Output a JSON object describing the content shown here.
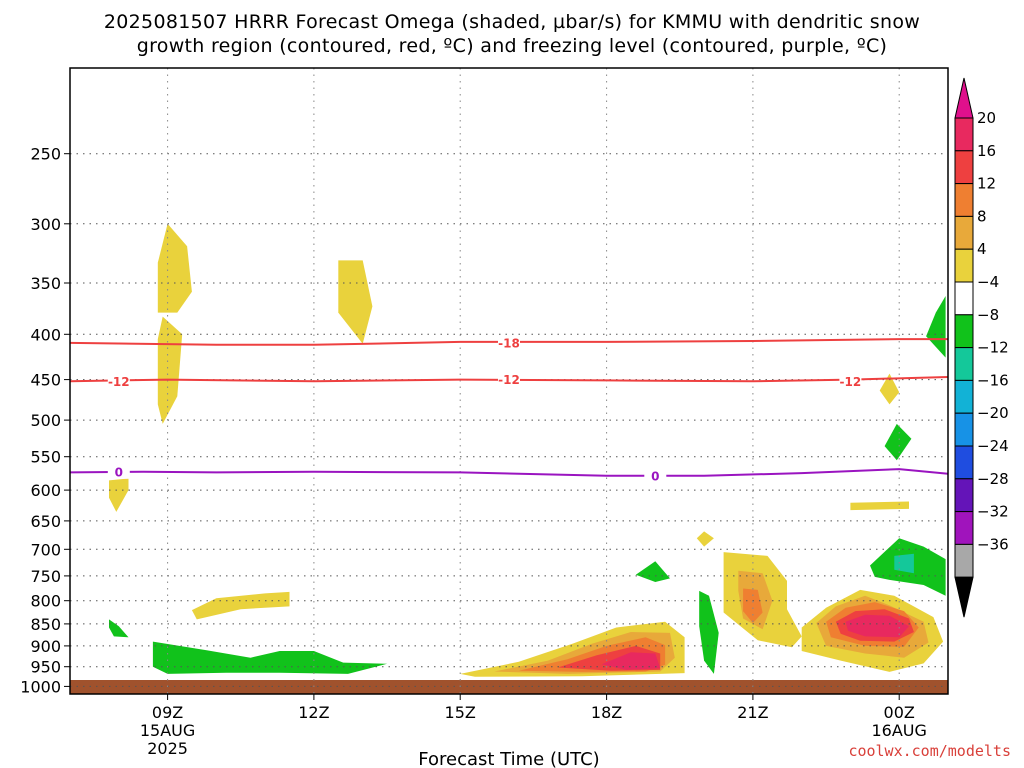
{
  "title_line1": "2025081507 HRRR Forecast Omega (shaded, µbar/s) for KMMU with dendritic snow",
  "title_line2": "growth region (contoured, red, ºC) and freezing level (contoured, purple, ºC)",
  "credit": "coolwx.com/modelts",
  "colorbar": {
    "labels": [
      "20",
      "16",
      "12",
      "8",
      "4",
      "−4",
      "−8",
      "−12",
      "−16",
      "−20",
      "−24",
      "−28",
      "−32",
      "−36"
    ],
    "colors": [
      "#e8295f",
      "#ee4040",
      "#ef7f31",
      "#e8a93a",
      "#e9d23c",
      "#ffffff",
      "#11c21b",
      "#14c89a",
      "#12b2d6",
      "#1792e6",
      "#1f4de0",
      "#6414b8",
      "#a014bc",
      "#a8a8a8"
    ],
    "top_arrow_color": "#e0108c",
    "bottom_arrow_color": "#000000"
  },
  "chart_data": {
    "type": "heatmap",
    "title": "2025081507 HRRR Forecast Omega (shaded, µbar/s) for KMMU with dendritic snow growth region (contoured, red, ºC) and freezing level (contoured, purple, ºC)",
    "xlabel": "Forecast Time (UTC)",
    "ylabel": "",
    "x_ticks": [
      {
        "hour": 9,
        "label": "09Z",
        "sub1": "15AUG",
        "sub2": "2025"
      },
      {
        "hour": 12,
        "label": "12Z",
        "sub1": "",
        "sub2": ""
      },
      {
        "hour": 15,
        "label": "15Z",
        "sub1": "",
        "sub2": ""
      },
      {
        "hour": 18,
        "label": "18Z",
        "sub1": "",
        "sub2": ""
      },
      {
        "hour": 21,
        "label": "21Z",
        "sub1": "",
        "sub2": ""
      },
      {
        "hour": 24,
        "label": "00Z",
        "sub1": "16AUG",
        "sub2": ""
      }
    ],
    "x_range_hours": [
      7,
      25
    ],
    "y_ticks": [
      250,
      300,
      350,
      400,
      450,
      500,
      550,
      600,
      650,
      700,
      750,
      800,
      850,
      900,
      950,
      1000
    ],
    "y_range_hPa": [
      200,
      1020
    ],
    "surface_hPa": 1005,
    "grid": true,
    "contours": [
      {
        "name": "-18",
        "color": "#ee4040",
        "label_positions": [
          [
            16.0,
            409
          ]
        ],
        "points": [
          [
            7,
            409
          ],
          [
            10,
            411
          ],
          [
            12,
            411
          ],
          [
            15,
            408
          ],
          [
            18,
            408
          ],
          [
            21,
            407
          ],
          [
            24,
            405
          ],
          [
            25,
            405
          ]
        ]
      },
      {
        "name": "-12",
        "color": "#ee4040",
        "label_positions": [
          [
            8.0,
            452
          ],
          [
            16.0,
            450
          ],
          [
            23.0,
            452
          ]
        ],
        "points": [
          [
            7,
            452
          ],
          [
            9,
            450
          ],
          [
            12,
            452
          ],
          [
            15,
            450
          ],
          [
            18,
            451
          ],
          [
            21,
            452
          ],
          [
            23,
            450
          ],
          [
            25,
            447
          ]
        ]
      },
      {
        "name": "0",
        "color": "#9a14c0",
        "label_positions": [
          [
            8.0,
            572
          ],
          [
            19.0,
            578
          ]
        ],
        "points": [
          [
            7,
            573
          ],
          [
            8.5,
            572
          ],
          [
            10,
            573
          ],
          [
            12,
            572
          ],
          [
            15,
            573
          ],
          [
            18,
            578
          ],
          [
            20,
            578
          ],
          [
            22,
            574
          ],
          [
            24,
            568
          ],
          [
            25,
            575
          ]
        ]
      }
    ],
    "omega_regions": [
      {
        "class": "4 to 8",
        "color": "#e9d23c",
        "polygon": [
          [
            9.0,
            300
          ],
          [
            9.4,
            318
          ],
          [
            9.5,
            358
          ],
          [
            9.2,
            378
          ],
          [
            8.8,
            378
          ],
          [
            8.8,
            332
          ]
        ]
      },
      {
        "class": "4 to 8",
        "color": "#e9d23c",
        "polygon": [
          [
            8.9,
            382
          ],
          [
            9.3,
            400
          ],
          [
            9.2,
            470
          ],
          [
            8.9,
            505
          ],
          [
            8.8,
            480
          ],
          [
            8.8,
            405
          ]
        ]
      },
      {
        "class": "4 to 8",
        "color": "#e9d23c",
        "polygon": [
          [
            12.5,
            330
          ],
          [
            13.0,
            330
          ],
          [
            13.2,
            372
          ],
          [
            13.0,
            410
          ],
          [
            12.5,
            378
          ]
        ]
      },
      {
        "class": "4 to 8",
        "color": "#e9d23c",
        "polygon": [
          [
            7.8,
            585
          ],
          [
            8.2,
            582
          ],
          [
            8.2,
            600
          ],
          [
            7.95,
            635
          ],
          [
            7.8,
            612
          ]
        ]
      },
      {
        "class": "4 to 8",
        "color": "#e9d23c",
        "polygon": [
          [
            9.5,
            820
          ],
          [
            10.0,
            795
          ],
          [
            11.0,
            785
          ],
          [
            11.5,
            782
          ],
          [
            11.5,
            812
          ],
          [
            10.5,
            818
          ],
          [
            9.6,
            840
          ]
        ]
      },
      {
        "class": "4 to 8",
        "color": "#e9d23c",
        "polygon": [
          [
            15.0,
            968
          ],
          [
            16.2,
            938
          ],
          [
            17.3,
            895
          ],
          [
            18.2,
            858
          ],
          [
            19.2,
            845
          ],
          [
            19.6,
            880
          ],
          [
            19.6,
            966
          ],
          [
            17.5,
            974
          ],
          [
            15.3,
            975
          ]
        ]
      },
      {
        "class": "4 to 8",
        "color": "#e9d23c",
        "polygon": [
          [
            20.4,
            705
          ],
          [
            21.3,
            712
          ],
          [
            21.7,
            760
          ],
          [
            21.7,
            818
          ],
          [
            22.0,
            878
          ],
          [
            21.8,
            903
          ],
          [
            21.1,
            887
          ],
          [
            20.4,
            825
          ],
          [
            20.4,
            755
          ]
        ]
      },
      {
        "class": "4 to 8",
        "color": "#e9d23c",
        "polygon": [
          [
            22.0,
            858
          ],
          [
            22.5,
            815
          ],
          [
            23.2,
            778
          ],
          [
            23.9,
            790
          ],
          [
            24.7,
            835
          ],
          [
            24.9,
            890
          ],
          [
            24.5,
            942
          ],
          [
            23.8,
            963
          ],
          [
            22.8,
            935
          ],
          [
            22.0,
            912
          ]
        ]
      },
      {
        "class": "4 to 8",
        "color": "#e9d23c",
        "polygon": [
          [
            23.8,
            443
          ],
          [
            24.0,
            465
          ],
          [
            23.8,
            480
          ],
          [
            23.6,
            463
          ]
        ]
      },
      {
        "class": "4 to 8",
        "color": "#e9d23c",
        "polygon": [
          [
            23.0,
            620
          ],
          [
            24.2,
            618
          ],
          [
            24.2,
            630
          ],
          [
            23.0,
            632
          ]
        ]
      },
      {
        "class": "4 to 8",
        "color": "#e9d23c",
        "polygon": [
          [
            20.0,
            668
          ],
          [
            20.2,
            680
          ],
          [
            20.0,
            695
          ],
          [
            19.85,
            680
          ]
        ]
      },
      {
        "class": "8 to 12",
        "color": "#e8a93a",
        "polygon": [
          [
            15.7,
            962
          ],
          [
            16.8,
            935
          ],
          [
            17.7,
            895
          ],
          [
            18.5,
            868
          ],
          [
            19.3,
            870
          ],
          [
            19.4,
            928
          ],
          [
            19.1,
            962
          ],
          [
            17.2,
            968
          ]
        ]
      },
      {
        "class": "8 to 12",
        "color": "#e8a93a",
        "polygon": [
          [
            20.7,
            740
          ],
          [
            21.2,
            745
          ],
          [
            21.4,
            800
          ],
          [
            21.2,
            862
          ],
          [
            20.8,
            838
          ],
          [
            20.7,
            780
          ]
        ]
      },
      {
        "class": "8 to 12",
        "color": "#e8a93a",
        "polygon": [
          [
            22.3,
            848
          ],
          [
            22.7,
            812
          ],
          [
            23.3,
            790
          ],
          [
            23.8,
            810
          ],
          [
            24.5,
            845
          ],
          [
            24.6,
            892
          ],
          [
            24.1,
            928
          ],
          [
            23.3,
            918
          ],
          [
            22.5,
            900
          ]
        ]
      },
      {
        "class": "12 to 16",
        "color": "#ef7f31",
        "polygon": [
          [
            16.2,
            960
          ],
          [
            17.2,
            932
          ],
          [
            18.0,
            900
          ],
          [
            18.8,
            880
          ],
          [
            19.2,
            898
          ],
          [
            19.2,
            945
          ],
          [
            18.8,
            962
          ],
          [
            17.5,
            963
          ]
        ]
      },
      {
        "class": "12 to 16",
        "color": "#ef7f31",
        "polygon": [
          [
            20.8,
            775
          ],
          [
            21.1,
            778
          ],
          [
            21.2,
            825
          ],
          [
            21.0,
            848
          ],
          [
            20.8,
            822
          ]
        ]
      },
      {
        "class": "12 to 16",
        "color": "#ef7f31",
        "polygon": [
          [
            22.5,
            845
          ],
          [
            22.9,
            815
          ],
          [
            23.5,
            803
          ],
          [
            24.1,
            822
          ],
          [
            24.4,
            858
          ],
          [
            24.1,
            902
          ],
          [
            23.3,
            900
          ],
          [
            22.6,
            880
          ]
        ]
      },
      {
        "class": "16 to 20",
        "color": "#ee4040",
        "polygon": [
          [
            17.0,
            952
          ],
          [
            17.8,
            922
          ],
          [
            18.6,
            900
          ],
          [
            19.1,
            918
          ],
          [
            19.1,
            958
          ],
          [
            18.1,
            960
          ]
        ]
      },
      {
        "class": "16 to 20",
        "color": "#ee4040",
        "polygon": [
          [
            22.7,
            845
          ],
          [
            23.1,
            822
          ],
          [
            23.7,
            818
          ],
          [
            24.2,
            838
          ],
          [
            24.3,
            868
          ],
          [
            23.9,
            890
          ],
          [
            23.2,
            888
          ],
          [
            22.8,
            872
          ]
        ]
      },
      {
        "class": "above 20",
        "color": "#e8295f",
        "polygon": [
          [
            17.9,
            944
          ],
          [
            18.5,
            915
          ],
          [
            19.0,
            918
          ],
          [
            19.1,
            954
          ],
          [
            18.4,
            958
          ]
        ]
      },
      {
        "class": "above 20",
        "color": "#e8295f",
        "polygon": [
          [
            22.9,
            845
          ],
          [
            23.3,
            830
          ],
          [
            23.8,
            832
          ],
          [
            24.2,
            855
          ],
          [
            24.0,
            880
          ],
          [
            23.3,
            878
          ],
          [
            22.95,
            865
          ]
        ]
      },
      {
        "class": "-4 to -8",
        "color": "#11c21b",
        "polygon": [
          [
            8.7,
            890
          ],
          [
            9.8,
            910
          ],
          [
            10.7,
            928
          ],
          [
            11.3,
            912
          ],
          [
            12.0,
            912
          ],
          [
            12.6,
            940
          ],
          [
            13.5,
            943
          ],
          [
            12.7,
            968
          ],
          [
            11.3,
            965
          ],
          [
            10.2,
            965
          ],
          [
            9.0,
            968
          ],
          [
            8.7,
            950
          ]
        ]
      },
      {
        "class": "-4 to -8",
        "color": "#11c21b",
        "polygon": [
          [
            7.8,
            840
          ],
          [
            8.0,
            855
          ],
          [
            8.2,
            880
          ],
          [
            7.9,
            878
          ],
          [
            7.8,
            858
          ]
        ]
      },
      {
        "class": "-4 to -8",
        "color": "#11c21b",
        "polygon": [
          [
            19.0,
            722
          ],
          [
            19.3,
            755
          ],
          [
            19.0,
            762
          ],
          [
            18.6,
            748
          ]
        ]
      },
      {
        "class": "-4 to -8",
        "color": "#11c21b",
        "polygon": [
          [
            19.9,
            780
          ],
          [
            20.1,
            790
          ],
          [
            20.3,
            870
          ],
          [
            20.2,
            968
          ],
          [
            20.0,
            935
          ],
          [
            19.9,
            855
          ]
        ]
      },
      {
        "class": "-4 to -8",
        "color": "#11c21b",
        "polygon": [
          [
            24.95,
            362
          ],
          [
            24.95,
            425
          ],
          [
            24.55,
            402
          ],
          [
            24.75,
            378
          ]
        ]
      },
      {
        "class": "-4 to -8",
        "color": "#11c21b",
        "polygon": [
          [
            23.95,
            505
          ],
          [
            24.25,
            525
          ],
          [
            23.95,
            555
          ],
          [
            23.7,
            535
          ]
        ]
      },
      {
        "class": "-4 to -8",
        "color": "#11c21b",
        "polygon": [
          [
            23.4,
            730
          ],
          [
            24.0,
            680
          ],
          [
            24.5,
            695
          ],
          [
            24.95,
            718
          ],
          [
            24.95,
            790
          ],
          [
            24.5,
            768
          ],
          [
            23.8,
            758
          ],
          [
            23.5,
            752
          ]
        ]
      },
      {
        "class": "-8 to -12",
        "color": "#14c89a",
        "polygon": [
          [
            23.9,
            712
          ],
          [
            24.3,
            708
          ],
          [
            24.3,
            745
          ],
          [
            23.9,
            738
          ]
        ]
      }
    ]
  }
}
